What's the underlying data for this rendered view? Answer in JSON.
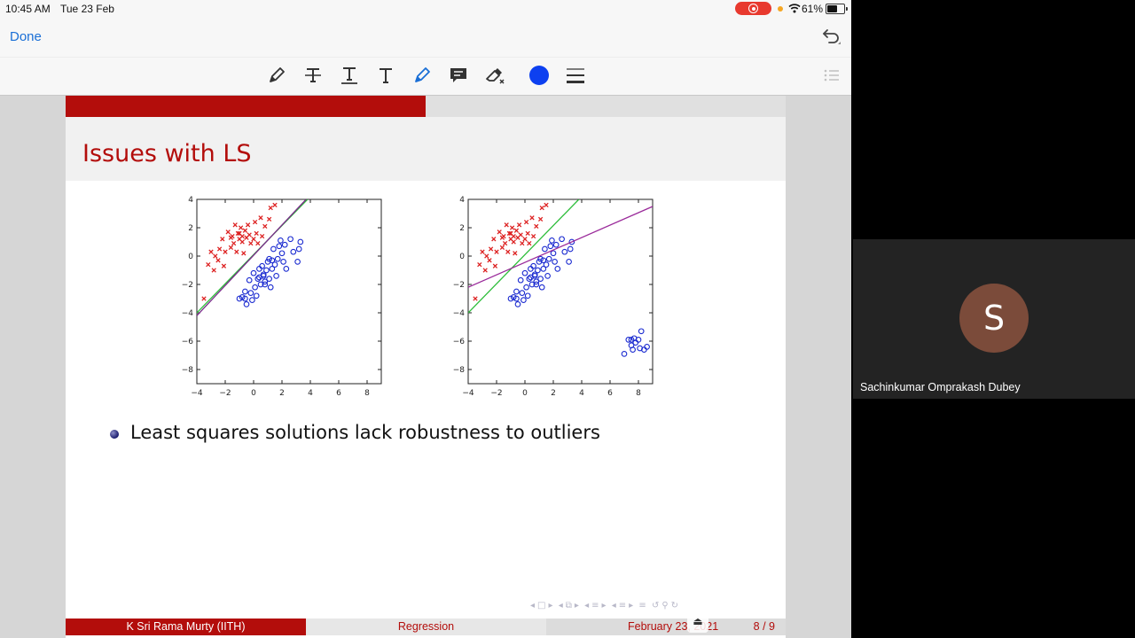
{
  "status_bar": {
    "time": "10:45 AM",
    "date": "Tue 23 Feb",
    "battery": "61%",
    "battery_level": 0.61
  },
  "nav": {
    "done_label": "Done"
  },
  "toolbar": {
    "tools": [
      "pen-icon",
      "strikethrough-text-icon",
      "underline-text-icon",
      "text-icon",
      "highlighter-icon",
      "comment-icon",
      "eraser-icon"
    ],
    "color": "#0d40f0"
  },
  "slide": {
    "title": "Issues with LS",
    "bullet": "Least squares solutions lack robustness to outliers",
    "footer": {
      "author": "K Sri Rama Murty  (IITH)",
      "title": "Regression",
      "date": "February 23, 2021",
      "page": "8 / 9"
    },
    "accent_color": "#b30d0b"
  },
  "participant": {
    "initial": "S",
    "name": "Sachinkumar Omprakash Dubey"
  },
  "chart_data": [
    {
      "type": "scatter",
      "title": "",
      "xlim": [
        -4,
        9
      ],
      "ylim": [
        -9,
        4
      ],
      "x_ticks": [
        -4,
        -2,
        0,
        2,
        4,
        6,
        8
      ],
      "y_ticks": [
        4,
        2,
        0,
        -2,
        -4,
        -6,
        -8
      ],
      "series": [
        {
          "marker": "x",
          "color": "#dd2222",
          "points": [
            [
              -3.5,
              -3
            ],
            [
              -3.2,
              -0.6
            ],
            [
              -3,
              0.3
            ],
            [
              -2.8,
              -1
            ],
            [
              -2.7,
              0
            ],
            [
              -2.5,
              -0.3
            ],
            [
              -2.4,
              0.5
            ],
            [
              -2.2,
              1.2
            ],
            [
              -2.1,
              -0.7
            ],
            [
              -2,
              0.3
            ],
            [
              -1.8,
              1.7
            ],
            [
              -1.6,
              0.6
            ],
            [
              -1.5,
              1.4
            ],
            [
              -1.4,
              0.9
            ],
            [
              -1.3,
              2.2
            ],
            [
              -1.2,
              0.3
            ],
            [
              -1.1,
              1.6
            ],
            [
              -1,
              1.2
            ],
            [
              -0.9,
              2
            ],
            [
              -0.8,
              1
            ],
            [
              -0.7,
              0.2
            ],
            [
              -0.6,
              1.8
            ],
            [
              -0.5,
              1.3
            ],
            [
              -0.4,
              2.2
            ],
            [
              -0.3,
              1.5
            ],
            [
              -0.2,
              0.9
            ],
            [
              0,
              1.2
            ],
            [
              0.1,
              2.4
            ],
            [
              0.2,
              1.6
            ],
            [
              0.3,
              0.9
            ],
            [
              0.5,
              2.7
            ],
            [
              0.6,
              1.4
            ],
            [
              0.8,
              2.1
            ],
            [
              1.1,
              2.6
            ],
            [
              1.2,
              3.4
            ],
            [
              1.5,
              3.6
            ],
            [
              -1.6,
              1.3
            ],
            [
              -1,
              1.6
            ],
            [
              -0.8,
              1.4
            ]
          ]
        },
        {
          "marker": "o",
          "color": "#1a2ad0",
          "points": [
            [
              -1,
              -3
            ],
            [
              -0.8,
              -2.9
            ],
            [
              -0.6,
              -2.5
            ],
            [
              -0.5,
              -3.4
            ],
            [
              -0.3,
              -1.7
            ],
            [
              -0.2,
              -2.6
            ],
            [
              -0.1,
              -3.1
            ],
            [
              0,
              -1.2
            ],
            [
              0.1,
              -2.2
            ],
            [
              0.2,
              -2.8
            ],
            [
              0.3,
              -1.6
            ],
            [
              0.4,
              -0.9
            ],
            [
              0.5,
              -2
            ],
            [
              0.6,
              -0.7
            ],
            [
              0.7,
              -1.3
            ],
            [
              0.8,
              -1.8
            ],
            [
              0.9,
              -1
            ],
            [
              1,
              -0.4
            ],
            [
              1.1,
              -0.2
            ],
            [
              1.1,
              -1.6
            ],
            [
              1.2,
              -2.2
            ],
            [
              1.3,
              -0.9
            ],
            [
              1.3,
              -0.3
            ],
            [
              1.4,
              0.5
            ],
            [
              1.5,
              -0.6
            ],
            [
              1.6,
              -1.4
            ],
            [
              1.7,
              -0.2
            ],
            [
              1.8,
              0.7
            ],
            [
              1.9,
              1.1
            ],
            [
              2,
              0.2
            ],
            [
              2.1,
              -0.4
            ],
            [
              2.2,
              0.8
            ],
            [
              2.3,
              -0.9
            ],
            [
              2.6,
              1.2
            ],
            [
              2.8,
              0.3
            ],
            [
              3.1,
              -0.4
            ],
            [
              3.2,
              0.5
            ],
            [
              3.3,
              1
            ],
            [
              0.4,
              -1.5
            ],
            [
              0.7,
              -1.4
            ],
            [
              -0.6,
              -3
            ],
            [
              0.8,
              -2
            ]
          ]
        },
        {
          "name": "",
          "marker": "line",
          "color": "#2dbd3a",
          "points": [
            [
              -4,
              -4
            ],
            [
              3.8,
              4
            ]
          ]
        },
        {
          "name": "",
          "marker": "line",
          "color": "#7a2a8a",
          "points": [
            [
              -4,
              -4.2
            ],
            [
              3.7,
              4
            ]
          ]
        }
      ]
    },
    {
      "type": "scatter",
      "title": "",
      "xlim": [
        -4,
        9
      ],
      "ylim": [
        -9,
        4
      ],
      "x_ticks": [
        -4,
        -2,
        0,
        2,
        4,
        6,
        8
      ],
      "y_ticks": [
        4,
        2,
        0,
        -2,
        -4,
        -6,
        -8
      ],
      "series": [
        {
          "marker": "x",
          "color": "#dd2222",
          "points": [
            [
              -3.5,
              -3
            ],
            [
              -3.2,
              -0.6
            ],
            [
              -3,
              0.3
            ],
            [
              -2.8,
              -1
            ],
            [
              -2.7,
              0
            ],
            [
              -2.5,
              -0.3
            ],
            [
              -2.4,
              0.5
            ],
            [
              -2.2,
              1.2
            ],
            [
              -2.1,
              -0.7
            ],
            [
              -2,
              0.3
            ],
            [
              -1.8,
              1.7
            ],
            [
              -1.6,
              0.6
            ],
            [
              -1.5,
              1.4
            ],
            [
              -1.4,
              0.9
            ],
            [
              -1.3,
              2.2
            ],
            [
              -1.2,
              0.3
            ],
            [
              -1.1,
              1.6
            ],
            [
              -1,
              1.2
            ],
            [
              -0.9,
              2
            ],
            [
              -0.8,
              1
            ],
            [
              -0.7,
              0.2
            ],
            [
              -0.6,
              1.8
            ],
            [
              -0.5,
              1.3
            ],
            [
              -0.4,
              2.2
            ],
            [
              -0.3,
              1.5
            ],
            [
              -0.2,
              0.9
            ],
            [
              0,
              1.2
            ],
            [
              0.1,
              2.4
            ],
            [
              0.2,
              1.6
            ],
            [
              0.3,
              0.9
            ],
            [
              0.5,
              2.7
            ],
            [
              0.6,
              1.4
            ],
            [
              0.8,
              2.1
            ],
            [
              1.1,
              2.6
            ],
            [
              1.2,
              3.4
            ],
            [
              1.5,
              3.6
            ],
            [
              -1.6,
              1.3
            ],
            [
              -1,
              1.6
            ],
            [
              -0.8,
              1.4
            ]
          ]
        },
        {
          "marker": "o",
          "color": "#1a2ad0",
          "points": [
            [
              -1,
              -3
            ],
            [
              -0.8,
              -2.9
            ],
            [
              -0.6,
              -2.5
            ],
            [
              -0.5,
              -3.4
            ],
            [
              -0.3,
              -1.7
            ],
            [
              -0.2,
              -2.6
            ],
            [
              -0.1,
              -3.1
            ],
            [
              0,
              -1.2
            ],
            [
              0.1,
              -2.2
            ],
            [
              0.2,
              -2.8
            ],
            [
              0.3,
              -1.6
            ],
            [
              0.4,
              -0.9
            ],
            [
              0.5,
              -2
            ],
            [
              0.6,
              -0.7
            ],
            [
              0.7,
              -1.3
            ],
            [
              0.8,
              -1.8
            ],
            [
              0.9,
              -1
            ],
            [
              1,
              -0.4
            ],
            [
              1.1,
              -0.2
            ],
            [
              1.1,
              -1.6
            ],
            [
              1.2,
              -2.2
            ],
            [
              1.3,
              -0.9
            ],
            [
              1.3,
              -0.3
            ],
            [
              1.4,
              0.5
            ],
            [
              1.5,
              -0.6
            ],
            [
              1.6,
              -1.4
            ],
            [
              1.7,
              -0.2
            ],
            [
              1.8,
              0.7
            ],
            [
              1.9,
              1.1
            ],
            [
              2,
              0.2
            ],
            [
              2.1,
              -0.4
            ],
            [
              2.2,
              0.8
            ],
            [
              2.3,
              -0.9
            ],
            [
              2.6,
              1.2
            ],
            [
              2.8,
              0.3
            ],
            [
              3.1,
              -0.4
            ],
            [
              3.2,
              0.5
            ],
            [
              3.3,
              1
            ],
            [
              0.4,
              -1.5
            ],
            [
              0.7,
              -1.4
            ],
            [
              -0.6,
              -3
            ],
            [
              0.8,
              -2
            ],
            [
              7,
              -6.9
            ],
            [
              7.3,
              -5.9
            ],
            [
              7.5,
              -6.3
            ],
            [
              7.6,
              -6.6
            ],
            [
              7.7,
              -5.8
            ],
            [
              7.8,
              -6.1
            ],
            [
              8,
              -5.9
            ],
            [
              8.1,
              -6.5
            ],
            [
              8.2,
              -5.3
            ],
            [
              8.4,
              -6.6
            ],
            [
              8.6,
              -6.4
            ],
            [
              7.5,
              -5.9
            ]
          ]
        },
        {
          "name": "",
          "marker": "line",
          "color": "#2dbd3a",
          "points": [
            [
              -4,
              -4
            ],
            [
              3.8,
              4
            ]
          ]
        },
        {
          "name": "",
          "marker": "line",
          "color": "#9a2a9a",
          "points": [
            [
              -4,
              -2.2
            ],
            [
              9,
              3.5
            ]
          ]
        }
      ]
    }
  ]
}
